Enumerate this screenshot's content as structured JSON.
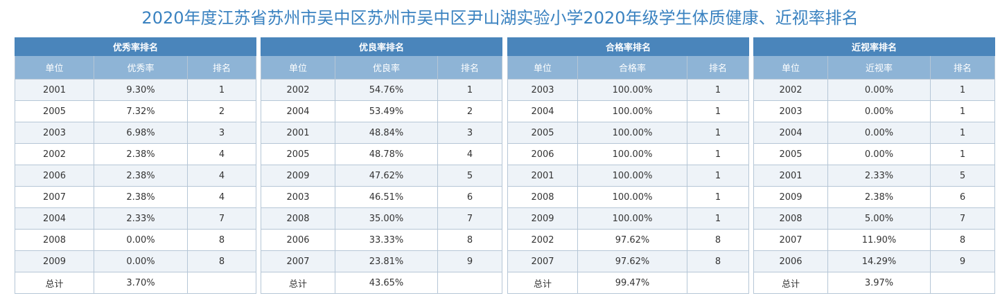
{
  "title": "2020年度江苏省苏州市吴中区苏州市吴中区尹山湖实验小学2020年级学生体质健康、近视率排名",
  "panels": [
    {
      "caption": "优秀率排名",
      "headers": [
        "单位",
        "优秀率",
        "排名"
      ],
      "rows": [
        [
          "2001",
          "9.30%",
          "1"
        ],
        [
          "2005",
          "7.32%",
          "2"
        ],
        [
          "2003",
          "6.98%",
          "3"
        ],
        [
          "2002",
          "2.38%",
          "4"
        ],
        [
          "2006",
          "2.38%",
          "4"
        ],
        [
          "2007",
          "2.38%",
          "4"
        ],
        [
          "2004",
          "2.33%",
          "7"
        ],
        [
          "2008",
          "0.00%",
          "8"
        ],
        [
          "2009",
          "0.00%",
          "8"
        ],
        [
          "总计",
          "3.70%",
          ""
        ]
      ]
    },
    {
      "caption": "优良率排名",
      "headers": [
        "单位",
        "优良率",
        "排名"
      ],
      "rows": [
        [
          "2002",
          "54.76%",
          "1"
        ],
        [
          "2004",
          "53.49%",
          "2"
        ],
        [
          "2001",
          "48.84%",
          "3"
        ],
        [
          "2005",
          "48.78%",
          "4"
        ],
        [
          "2009",
          "47.62%",
          "5"
        ],
        [
          "2003",
          "46.51%",
          "6"
        ],
        [
          "2008",
          "35.00%",
          "7"
        ],
        [
          "2006",
          "33.33%",
          "8"
        ],
        [
          "2007",
          "23.81%",
          "9"
        ],
        [
          "总计",
          "43.65%",
          ""
        ]
      ]
    },
    {
      "caption": "合格率排名",
      "headers": [
        "单位",
        "合格率",
        "排名"
      ],
      "rows": [
        [
          "2003",
          "100.00%",
          "1"
        ],
        [
          "2004",
          "100.00%",
          "1"
        ],
        [
          "2005",
          "100.00%",
          "1"
        ],
        [
          "2006",
          "100.00%",
          "1"
        ],
        [
          "2001",
          "100.00%",
          "1"
        ],
        [
          "2008",
          "100.00%",
          "1"
        ],
        [
          "2009",
          "100.00%",
          "1"
        ],
        [
          "2002",
          "97.62%",
          "8"
        ],
        [
          "2007",
          "97.62%",
          "8"
        ],
        [
          "总计",
          "99.47%",
          ""
        ]
      ]
    },
    {
      "caption": "近视率排名",
      "headers": [
        "单位",
        "近视率",
        "排名"
      ],
      "rows": [
        [
          "2002",
          "0.00%",
          "1"
        ],
        [
          "2003",
          "0.00%",
          "1"
        ],
        [
          "2004",
          "0.00%",
          "1"
        ],
        [
          "2005",
          "0.00%",
          "1"
        ],
        [
          "2001",
          "2.33%",
          "5"
        ],
        [
          "2009",
          "2.38%",
          "6"
        ],
        [
          "2008",
          "5.00%",
          "7"
        ],
        [
          "2007",
          "11.90%",
          "8"
        ],
        [
          "2006",
          "14.29%",
          "9"
        ],
        [
          "总计",
          "3.97%",
          ""
        ]
      ]
    }
  ]
}
